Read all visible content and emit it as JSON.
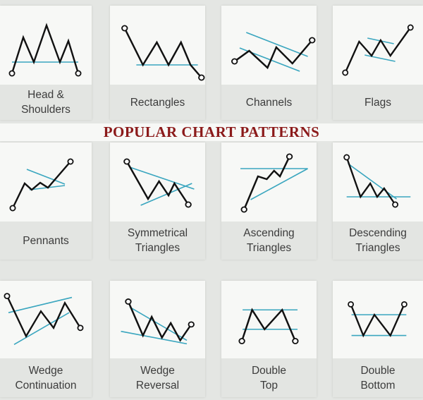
{
  "title": "POPULAR CHART PATTERNS",
  "colors": {
    "title": "#8b1a1a",
    "line": "#111111",
    "trend": "#3aa6bf"
  },
  "patterns": [
    {
      "id": "head-and-shoulders",
      "lines": [
        "Head &",
        "Shoulders"
      ]
    },
    {
      "id": "rectangles",
      "lines": [
        "Rectangles"
      ]
    },
    {
      "id": "channels",
      "lines": [
        "Channels"
      ]
    },
    {
      "id": "flags",
      "lines": [
        "Flags"
      ]
    },
    {
      "id": "pennants",
      "lines": [
        "Pennants"
      ]
    },
    {
      "id": "symmetrical-triangles",
      "lines": [
        "Symmetrical",
        "Triangles"
      ]
    },
    {
      "id": "ascending-triangles",
      "lines": [
        "Ascending",
        "Triangles"
      ]
    },
    {
      "id": "descending-triangles",
      "lines": [
        "Descending",
        "Triangles"
      ]
    },
    {
      "id": "wedge-continuation",
      "lines": [
        "Wedge",
        "Continuation"
      ]
    },
    {
      "id": "wedge-reversal",
      "lines": [
        "Wedge",
        "Reversal"
      ]
    },
    {
      "id": "double-top",
      "lines": [
        "Double",
        "Top"
      ]
    },
    {
      "id": "double-bottom",
      "lines": [
        "Double",
        "Bottom"
      ]
    }
  ]
}
